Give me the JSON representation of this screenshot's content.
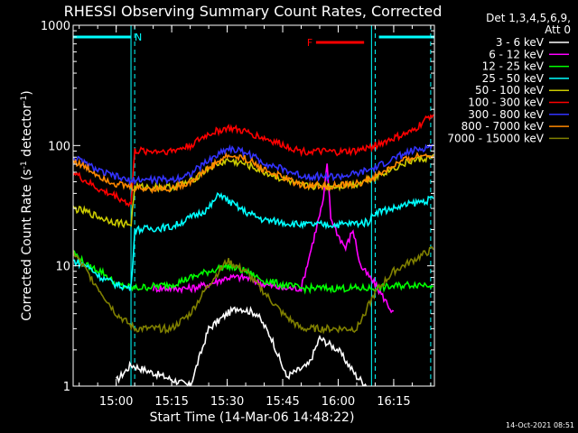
{
  "chart_data": {
    "type": "line",
    "title": "RHESSI Observing Summary Count Rates, Corrected",
    "xlabel": "Start Time (14-Mar-06 14:48:22)",
    "ylabel": "Corrected Count Rate (s",
    "ylabel_sup1": "-1",
    "ylabel_mid": " detector",
    "ylabel_sup2": "-1",
    "ylabel_end": ")",
    "y_scale": "log",
    "ylim": [
      1,
      1000
    ],
    "y_ticks": [
      {
        "value": 1,
        "label": "1"
      },
      {
        "value": 10,
        "label": "10"
      },
      {
        "value": 100,
        "label": "100"
      },
      {
        "value": 1000,
        "label": "1000"
      }
    ],
    "xlim": [
      "14:48:22",
      "16:26:00"
    ],
    "x_ticks": [
      {
        "value": "15:00",
        "label": "15:00"
      },
      {
        "value": "15:15",
        "label": "15:15"
      },
      {
        "value": "15:30",
        "label": "15:30"
      },
      {
        "value": "15:45",
        "label": "15:45"
      },
      {
        "value": "16:00",
        "label": "16:00"
      },
      {
        "value": "16:15",
        "label": "16:15"
      }
    ],
    "legend_header": [
      "Det 1,3,4,5,6,9,",
      "Att 0"
    ],
    "legend_placement": "right",
    "annotations": [
      {
        "label": "N",
        "color": "#00ffff",
        "x_start": "14:48:22",
        "x_end": "15:04:00",
        "band_x": "15:05:00"
      },
      {
        "label": "N",
        "color": "#00ffff",
        "x_start": "16:11:00",
        "x_end": "16:26:00",
        "band_x": "16:10:00"
      },
      {
        "label": "F",
        "color": "#ff0000",
        "x_start": "15:54:00",
        "x_end": "16:07:00"
      }
    ],
    "dashed_vlines": [
      "15:05:00",
      "16:10:00",
      "16:25:00"
    ],
    "solid_vlines": [
      "15:04:00",
      "16:09:00"
    ],
    "series": [
      {
        "name": "3 - 6 keV",
        "color": "#ffffff",
        "x": [
          "15:00",
          "15:04",
          "15:20",
          "15:25",
          "15:30",
          "15:33",
          "15:38",
          "15:42",
          "15:46",
          "15:52",
          "15:55",
          "16:00",
          "16:05",
          "16:08"
        ],
        "y": [
          1.1,
          1.5,
          1.0,
          3.0,
          4.0,
          4.5,
          4.0,
          2.5,
          1.2,
          1.5,
          2.5,
          2.0,
          1.2,
          1.0
        ]
      },
      {
        "name": "6 - 12 keV",
        "color": "#ff00ff",
        "x": [
          "15:10",
          "15:20",
          "15:25",
          "15:30",
          "15:35",
          "15:40",
          "15:45",
          "15:50",
          "15:56",
          "15:57",
          "15:58",
          "16:00",
          "16:02",
          "16:04",
          "16:06",
          "16:10",
          "16:15"
        ],
        "y": [
          6.5,
          6.5,
          7.0,
          8.0,
          8.0,
          7.0,
          6.5,
          6.5,
          35,
          70,
          25,
          18,
          14,
          20,
          10,
          7.0,
          4.0
        ]
      },
      {
        "name": "12 - 25 keV",
        "color": "#00ff00",
        "x": [
          "14:48:22",
          "14:52",
          "14:56",
          "15:00",
          "15:05",
          "15:15",
          "15:25",
          "15:30",
          "15:35",
          "15:40",
          "15:50",
          "16:00",
          "16:10",
          "16:20",
          "16:26"
        ],
        "y": [
          13,
          10,
          9,
          7,
          6.5,
          7.0,
          9.0,
          10,
          9.0,
          7.5,
          6.5,
          6.5,
          6.5,
          7.0,
          7.0
        ]
      },
      {
        "name": "25 - 50 keV",
        "color": "#00ffff",
        "x": [
          "14:48:22",
          "14:52",
          "14:56",
          "15:00",
          "15:04",
          "15:05",
          "15:15",
          "15:25",
          "15:28",
          "15:30",
          "15:35",
          "15:40",
          "15:50",
          "16:00",
          "16:08",
          "16:10",
          "16:15",
          "16:20",
          "16:26"
        ],
        "y": [
          11,
          10,
          8,
          7,
          6.5,
          20,
          21,
          30,
          40,
          35,
          28,
          24,
          22,
          22,
          23,
          28,
          30,
          33,
          36
        ]
      },
      {
        "name": "50 - 100 keV",
        "color": "#cccc00",
        "x": [
          "14:48:22",
          "14:52",
          "14:56",
          "15:00",
          "15:04",
          "15:05",
          "15:15",
          "15:20",
          "15:25",
          "15:30",
          "15:35",
          "15:40",
          "15:50",
          "16:00",
          "16:05",
          "16:10",
          "16:15",
          "16:20",
          "16:26"
        ],
        "y": [
          30,
          28,
          25,
          23,
          22,
          45,
          45,
          50,
          65,
          75,
          70,
          60,
          46,
          46,
          48,
          55,
          65,
          75,
          80
        ]
      },
      {
        "name": "100 - 300 keV",
        "color": "#ff0000",
        "x": [
          "14:48:22",
          "14:52",
          "14:56",
          "15:00",
          "15:04",
          "15:05",
          "15:15",
          "15:20",
          "15:25",
          "15:30",
          "15:35",
          "15:40",
          "15:50",
          "16:00",
          "16:05",
          "16:10",
          "16:15",
          "16:20",
          "16:26"
        ],
        "y": [
          60,
          50,
          42,
          38,
          32,
          90,
          90,
          100,
          125,
          140,
          130,
          115,
          90,
          88,
          90,
          100,
          115,
          130,
          190
        ]
      },
      {
        "name": "300 - 800 keV",
        "color": "#3333ff",
        "x": [
          "14:48:22",
          "14:52",
          "14:56",
          "15:00",
          "15:04",
          "15:05",
          "15:15",
          "15:20",
          "15:25",
          "15:30",
          "15:35",
          "15:40",
          "15:50",
          "16:00",
          "16:05",
          "16:10",
          "16:15",
          "16:20",
          "16:26"
        ],
        "y": [
          80,
          70,
          60,
          55,
          50,
          52,
          52,
          58,
          75,
          95,
          88,
          72,
          56,
          55,
          58,
          65,
          78,
          90,
          100
        ]
      },
      {
        "name": "800 - 7000 keV",
        "color": "#ff8800",
        "x": [
          "14:48:22",
          "14:52",
          "14:56",
          "15:00",
          "15:04",
          "15:05",
          "15:15",
          "15:20",
          "15:25",
          "15:30",
          "15:35",
          "15:40",
          "15:50",
          "16:00",
          "16:05",
          "16:10",
          "16:15",
          "16:20",
          "16:26"
        ],
        "y": [
          75,
          65,
          55,
          48,
          45,
          44,
          44,
          50,
          65,
          82,
          78,
          63,
          47,
          46,
          48,
          55,
          68,
          80,
          85
        ]
      },
      {
        "name": "7000 - 15000 keV",
        "color": "#808000",
        "x": [
          "14:48:22",
          "14:52",
          "14:56",
          "15:00",
          "15:05",
          "15:10",
          "15:15",
          "15:20",
          "15:25",
          "15:30",
          "15:35",
          "15:40",
          "15:45",
          "15:50",
          "16:00",
          "16:05",
          "16:10",
          "16:15",
          "16:20",
          "16:26"
        ],
        "y": [
          13,
          9,
          6,
          4,
          3.0,
          3.0,
          3.0,
          4.0,
          7.0,
          11,
          9.0,
          6.0,
          4.0,
          3.0,
          3.0,
          3.0,
          6.0,
          9.0,
          11,
          14
        ]
      }
    ]
  },
  "footer": {
    "timestamp": "14-Oct-2021 08:51"
  }
}
